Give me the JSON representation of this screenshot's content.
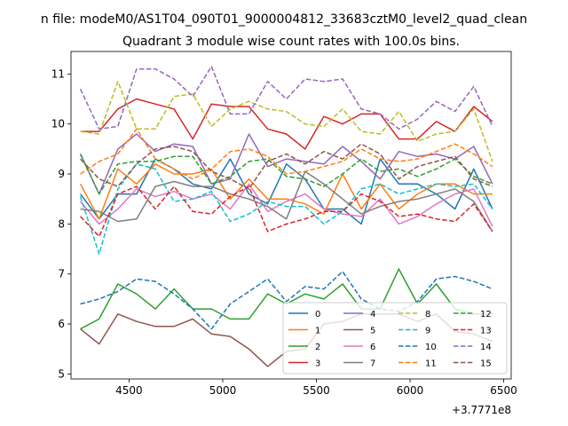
{
  "chart_data": {
    "type": "line",
    "suptitle": "n file: modeM0/AS1T04_090T01_9000004812_33683cztM0_level2_quad_clean",
    "title": "Quadrant 3 module wise count rates with 100.0s bins.",
    "xlabel": "",
    "ylabel": "",
    "x_offset_label": "+3.7771e8",
    "xlim": [
      4190,
      6540
    ],
    "ylim": [
      4.9,
      11.45
    ],
    "xticks": [
      4500,
      5000,
      5500,
      6000,
      6500
    ],
    "yticks": [
      5,
      6,
      7,
      8,
      9,
      10,
      11
    ],
    "grid": false,
    "legend_position": "lower-right",
    "legend_columns": 4,
    "x": [
      4240,
      4340,
      4440,
      4540,
      4640,
      4740,
      4840,
      4940,
      5040,
      5140,
      5240,
      5340,
      5440,
      5540,
      5640,
      5740,
      5840,
      5940,
      6040,
      6140,
      6240,
      6340,
      6440
    ],
    "series": [
      {
        "name": "0",
        "color": "#1f77b4",
        "dash": "solid",
        "values": [
          8.6,
          8.1,
          8.6,
          8.6,
          9.3,
          9.1,
          8.8,
          8.7,
          9.3,
          8.6,
          8.4,
          9.2,
          8.9,
          8.3,
          8.3,
          8.0,
          9.3,
          8.8,
          8.8,
          8.6,
          8.3,
          9.1,
          8.3
        ]
      },
      {
        "name": "1",
        "color": "#ff7f0e",
        "dash": "solid",
        "values": [
          8.8,
          8.1,
          9.1,
          8.8,
          9.2,
          9.0,
          9.0,
          9.1,
          8.5,
          8.9,
          8.5,
          8.5,
          8.4,
          8.2,
          9.0,
          8.3,
          8.8,
          8.3,
          8.6,
          8.8,
          8.8,
          8.6,
          8.6
        ]
      },
      {
        "name": "2",
        "color": "#2ca02c",
        "dash": "solid",
        "values": [
          5.9,
          6.1,
          6.8,
          6.6,
          6.3,
          6.7,
          6.3,
          6.3,
          6.1,
          6.1,
          6.6,
          6.4,
          6.6,
          6.5,
          6.8,
          6.3,
          6.3,
          7.1,
          6.4,
          6.8,
          6.3,
          6.2,
          6.2
        ]
      },
      {
        "name": "3",
        "color": "#d62728",
        "dash": "solid",
        "values": [
          9.85,
          9.85,
          10.3,
          10.5,
          10.4,
          10.3,
          9.7,
          10.4,
          10.35,
          10.35,
          9.9,
          9.8,
          9.5,
          10.15,
          10.0,
          10.2,
          10.2,
          9.7,
          9.7,
          10.05,
          9.85,
          10.35,
          10.05
        ]
      },
      {
        "name": "4",
        "color": "#9467bd",
        "dash": "solid",
        "values": [
          9.4,
          8.6,
          9.5,
          9.8,
          9.45,
          9.6,
          9.55,
          8.8,
          8.9,
          9.8,
          9.15,
          9.3,
          9.25,
          9.2,
          9.55,
          9.25,
          8.9,
          9.45,
          9.35,
          9.4,
          9.3,
          9.55,
          8.8
        ]
      },
      {
        "name": "5",
        "color": "#8c564b",
        "dash": "solid",
        "values": [
          5.9,
          5.6,
          6.2,
          6.05,
          5.95,
          5.95,
          6.1,
          5.8,
          5.75,
          5.5,
          5.15,
          5.45,
          5.5,
          6.0,
          6.05,
          6.2,
          6.2,
          6.2,
          6.05,
          6.2,
          5.85,
          5.8,
          5.65
        ]
      },
      {
        "name": "6",
        "color": "#e377c2",
        "dash": "solid",
        "values": [
          8.45,
          8.0,
          8.3,
          8.7,
          8.55,
          8.65,
          8.5,
          8.6,
          8.3,
          8.8,
          8.25,
          8.45,
          8.6,
          8.3,
          8.2,
          8.15,
          8.5,
          8.0,
          8.15,
          8.4,
          8.6,
          8.7,
          7.95
        ]
      },
      {
        "name": "7",
        "color": "#7f7f7f",
        "dash": "solid",
        "values": [
          8.3,
          8.25,
          8.05,
          8.1,
          8.75,
          8.85,
          8.75,
          8.75,
          8.6,
          8.5,
          8.35,
          8.1,
          9.05,
          8.8,
          8.5,
          8.2,
          8.35,
          8.45,
          8.5,
          8.6,
          8.7,
          8.45,
          7.85
        ]
      },
      {
        "name": "8",
        "color": "#bcbd22",
        "dash": "dashed",
        "values": [
          9.85,
          9.8,
          10.85,
          9.9,
          9.9,
          10.55,
          10.6,
          9.95,
          10.3,
          10.45,
          10.3,
          10.25,
          10.0,
          9.95,
          10.3,
          9.85,
          9.8,
          10.25,
          9.65,
          9.8,
          9.85,
          10.3,
          9.25
        ]
      },
      {
        "name": "9",
        "color": "#17becf",
        "dash": "dashed",
        "values": [
          8.55,
          7.4,
          8.7,
          9.2,
          9.1,
          8.45,
          8.5,
          8.65,
          8.05,
          8.2,
          8.45,
          8.35,
          8.35,
          8.0,
          8.25,
          8.7,
          8.8,
          8.6,
          8.7,
          8.8,
          8.75,
          8.8,
          8.3
        ]
      },
      {
        "name": "10",
        "color": "#1f77b4",
        "dash": "dashed",
        "values": [
          6.4,
          6.5,
          6.65,
          6.9,
          6.85,
          6.6,
          6.3,
          5.9,
          6.4,
          6.65,
          6.9,
          6.45,
          6.75,
          6.7,
          7.05,
          6.5,
          6.3,
          6.25,
          6.45,
          6.9,
          6.95,
          6.85,
          6.7
        ]
      },
      {
        "name": "11",
        "color": "#ff7f0e",
        "dash": "dashed",
        "values": [
          9.0,
          9.25,
          9.4,
          9.9,
          9.3,
          9.1,
          8.9,
          9.1,
          9.45,
          9.5,
          9.35,
          9.0,
          9.05,
          9.15,
          9.25,
          9.5,
          9.3,
          9.25,
          9.3,
          9.45,
          9.6,
          9.4,
          9.15
        ]
      },
      {
        "name": "12",
        "color": "#2ca02c",
        "dash": "dashed",
        "values": [
          9.4,
          8.6,
          9.2,
          9.25,
          9.25,
          9.35,
          9.35,
          8.8,
          8.95,
          9.25,
          9.3,
          8.95,
          8.9,
          8.75,
          9.0,
          9.3,
          9.05,
          9.1,
          8.95,
          9.1,
          9.3,
          8.95,
          8.8
        ]
      },
      {
        "name": "13",
        "color": "#d62728",
        "dash": "dashed",
        "values": [
          8.15,
          7.75,
          8.6,
          8.75,
          8.3,
          8.75,
          8.25,
          8.2,
          8.55,
          8.75,
          7.85,
          8.0,
          8.1,
          8.25,
          8.25,
          8.6,
          8.45,
          8.15,
          8.2,
          8.1,
          8.05,
          8.4,
          7.85
        ]
      },
      {
        "name": "14",
        "color": "#9467bd",
        "dash": "dashed",
        "values": [
          10.7,
          9.9,
          9.95,
          11.1,
          11.1,
          10.9,
          10.55,
          11.15,
          10.2,
          10.2,
          10.85,
          10.5,
          10.9,
          10.85,
          10.9,
          10.3,
          10.2,
          9.9,
          10.1,
          10.45,
          10.25,
          10.75,
          9.95
        ]
      },
      {
        "name": "15",
        "color": "#8c564b",
        "dash": "dashed",
        "values": [
          9.3,
          8.9,
          8.75,
          9.2,
          9.5,
          9.55,
          9.45,
          9.05,
          8.9,
          8.7,
          9.25,
          9.4,
          9.2,
          9.45,
          9.3,
          9.6,
          9.4,
          8.9,
          9.15,
          9.25,
          9.35,
          8.9,
          8.75
        ]
      }
    ]
  }
}
